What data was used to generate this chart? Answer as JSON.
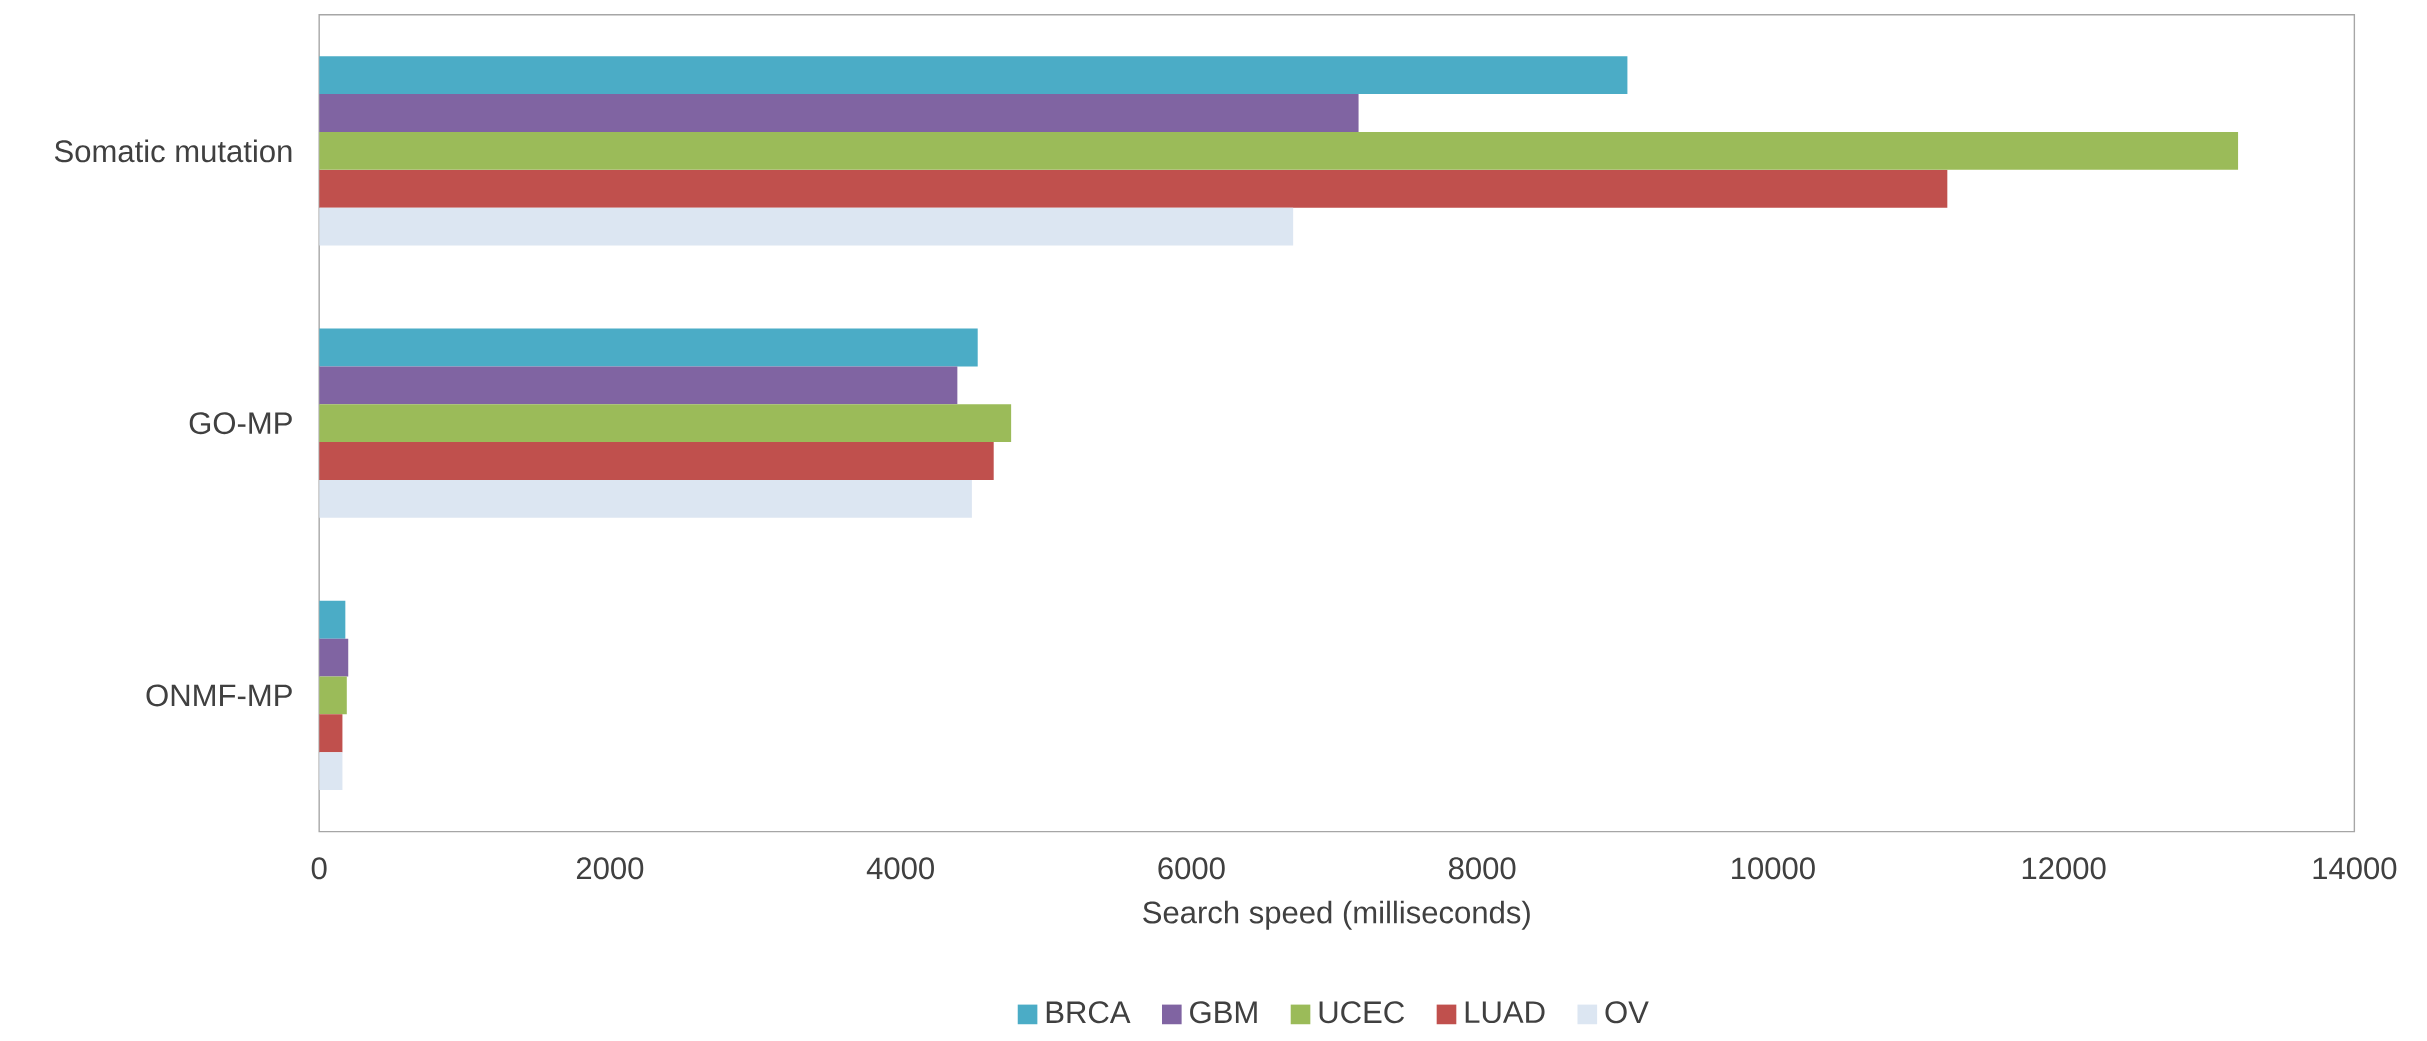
{
  "chart_data": {
    "type": "bar",
    "orientation": "horizontal",
    "xlabel": "Search speed (milliseconds)",
    "categories": [
      "Somatic mutation",
      "GO-MP",
      "ONMF-MP"
    ],
    "series": [
      {
        "name": "BRCA",
        "color": "#4bacc6",
        "values": [
          9000,
          4530,
          180
        ]
      },
      {
        "name": "GBM",
        "color": "#8064a2",
        "values": [
          7150,
          4390,
          200
        ]
      },
      {
        "name": "UCEC",
        "color": "#9bbb59",
        "values": [
          13200,
          4760,
          190
        ]
      },
      {
        "name": "LUAD",
        "color": "#c0504d",
        "values": [
          11200,
          4640,
          160
        ]
      },
      {
        "name": "OV",
        "color": "#dce6f2",
        "values": [
          6700,
          4490,
          160
        ]
      }
    ],
    "xlim": [
      0,
      14000
    ],
    "xticks": [
      0,
      2000,
      4000,
      6000,
      8000,
      10000,
      12000,
      14000
    ],
    "grid": false,
    "legend": "bottom"
  }
}
